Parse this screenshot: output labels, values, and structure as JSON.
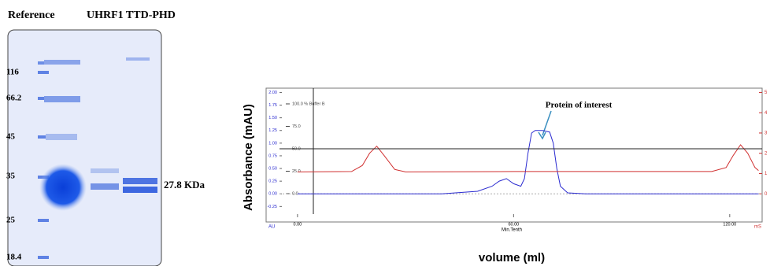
{
  "gel": {
    "title_left": "Reference",
    "title_right": "UHRF1 TTD-PHD",
    "markers": [
      "116",
      "66.2",
      "45",
      "35",
      "25",
      "18.4"
    ],
    "band_label": "27.8 KDa"
  },
  "chart_data": {
    "type": "line",
    "y_axis_label": "Absorbance (mAU)",
    "x_axis_label": "volume (ml)",
    "x_unit_label": "Min.Tenth",
    "y_unit_label": "AU",
    "y2_unit_label": "mS",
    "annotation": "Protein of interest",
    "xlim": [
      -5,
      129
    ],
    "xticks": [
      {
        "value": 0,
        "label": "0.00"
      },
      {
        "value": 60,
        "label": "60.00"
      },
      {
        "value": 120,
        "label": "120.00"
      }
    ],
    "ylim": [
      -0.4,
      2.1
    ],
    "yticks": [
      {
        "value": 2,
        "label": "2.00"
      },
      {
        "value": 1.75,
        "label": "1.75"
      },
      {
        "value": 1.5,
        "label": "1.50"
      },
      {
        "value": 1.25,
        "label": "1.25"
      },
      {
        "value": 1,
        "label": "1.00"
      },
      {
        "value": 0.75,
        "label": "0.75"
      },
      {
        "value": 0.5,
        "label": "0.50"
      },
      {
        "value": 0.25,
        "label": "0.25"
      },
      {
        "value": 0,
        "label": "0.00"
      },
      {
        "value": -0.25,
        "label": "-0.25"
      }
    ],
    "y2lim": [
      -1,
      5.25
    ],
    "y2ticks": [
      5,
      4,
      3,
      2,
      1,
      0
    ],
    "y3lim": [
      -22.8,
      118.4
    ],
    "y3ticks": [
      {
        "value": 100,
        "label": "100.0 % Buffer B"
      },
      {
        "value": 75,
        "label": "75.0"
      },
      {
        "value": 50,
        "label": "50.0"
      },
      {
        "value": 25,
        "label": "25.0"
      },
      {
        "value": 0,
        "label": "0.0"
      }
    ],
    "series": [
      {
        "color": "#2b2bd0",
        "x": [
          0,
          40,
          50,
          54,
          56,
          58,
          60,
          62,
          63,
          64,
          65,
          66,
          68,
          70,
          71,
          72,
          73,
          75,
          80,
          100,
          128
        ],
        "values": [
          0,
          0,
          0.05,
          0.15,
          0.25,
          0.3,
          0.2,
          0.15,
          0.3,
          0.8,
          1.2,
          1.25,
          1.25,
          1.22,
          1.0,
          0.5,
          0.15,
          0.02,
          0,
          0,
          0
        ]
      },
      {
        "color": "#d03030",
        "axis": "y2",
        "x": [
          0,
          15,
          18,
          20,
          22,
          24,
          27,
          30,
          60,
          115,
          119,
          121,
          123,
          125,
          127,
          128
        ],
        "values": [
          1.08,
          1.1,
          1.4,
          2.0,
          2.35,
          1.9,
          1.2,
          1.08,
          1.1,
          1.1,
          1.3,
          1.9,
          2.42,
          2.0,
          1.3,
          1.15
        ]
      },
      {
        "color": "#222222",
        "axis": "y3",
        "x": [
          -5,
          129
        ],
        "values": [
          50,
          50
        ]
      }
    ]
  }
}
